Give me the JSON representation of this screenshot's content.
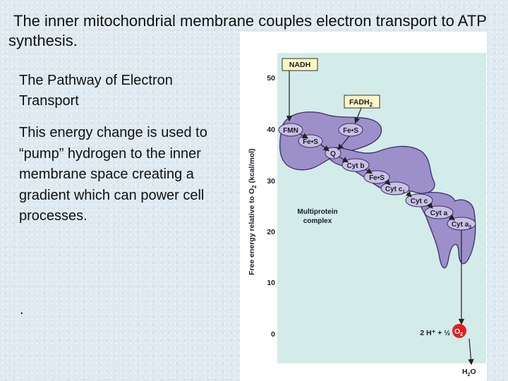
{
  "title": "The inner mitochondrial membrane couples electron transport to ATP synthesis.",
  "heading": "The Pathway of Electron Transport",
  "body": "This energy change is used to “pump” hydrogen to the inner membrane space creating a gradient which can power cell processes.",
  "dot": ".",
  "figure": {
    "y_axis_label": {
      "text": "Free energy relative to O",
      "sub": "2",
      "tail": " (kcal/mol)"
    },
    "y_ticks": [
      50,
      40,
      30,
      20,
      10,
      0
    ],
    "nadh": "NADH",
    "fadh2": {
      "text": "FADH",
      "sub": "2"
    },
    "carriers": [
      "FMN",
      "Fe•S",
      "Fe•S",
      "Q",
      "Cyt b",
      "Fe•S",
      "Cyt c",
      "Cyt a"
    ],
    "cyt_c1": {
      "text": "Cyt c",
      "sub": "1"
    },
    "cyt_a3": {
      "text": "Cyt a",
      "sub": "3"
    },
    "complex_label": [
      "Multiprotein",
      "complex"
    ],
    "reactant": "2 H⁺ + ½",
    "o2": {
      "text": "O",
      "sub": "2"
    },
    "product": {
      "text": "H",
      "sub": "2",
      "tail": "O"
    }
  }
}
